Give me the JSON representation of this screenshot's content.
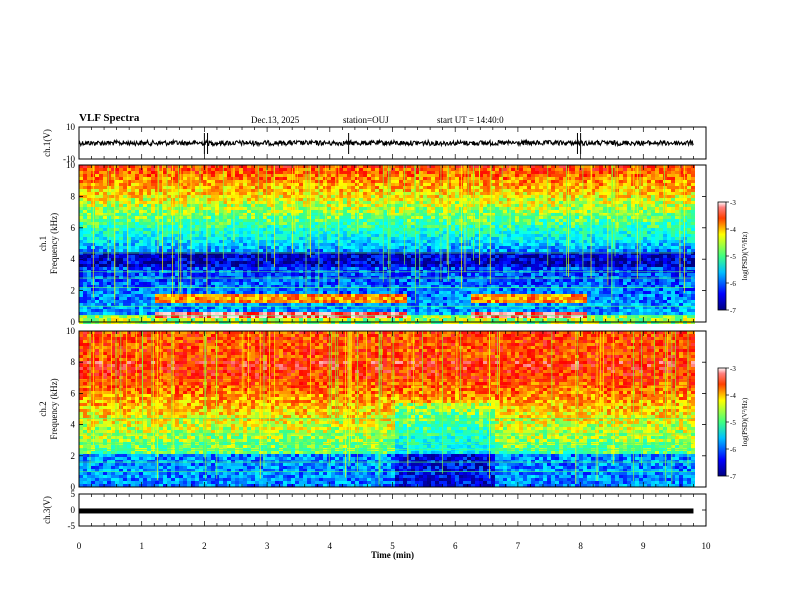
{
  "header": {
    "title": "VLF Spectra",
    "date": "Dec.13, 2025",
    "station": "station=OUJ",
    "start": "start UT =  14:40:0"
  },
  "colors": {
    "colormap": [
      "#000080",
      "#0000ff",
      "#00a0ff",
      "#00ffff",
      "#40ff80",
      "#ffff00",
      "#ff8000",
      "#ff0000",
      "#ffc0c0",
      "#ffffff"
    ],
    "trace": "#000000"
  },
  "chart_data": [
    {
      "type": "line",
      "name": "ch1-waveform",
      "ylabel": "ch.1(V)",
      "ylim": [
        -10,
        10
      ],
      "yticks": [
        "10",
        "-10"
      ],
      "xlim": [
        0,
        10
      ],
      "baseline": 0,
      "spikes_min": [
        0.0,
        2.0,
        2.05,
        4.3,
        7.95,
        8.0
      ]
    },
    {
      "type": "heatmap",
      "name": "ch1-spectrogram",
      "ylabel": "ch.1",
      "ylabel2": "Frequency (kHz)",
      "ylim": [
        0,
        10
      ],
      "yticks": [
        "0",
        "2",
        "4",
        "6",
        "8",
        "10"
      ],
      "xlim": [
        0,
        10
      ],
      "data_end_min": 9.8,
      "colorbar": {
        "label": "log(PSD)(V²/Hz)",
        "range": [
          -7,
          -3
        ],
        "ticks": [
          "-3",
          "-4",
          "-5",
          "-6",
          "-7"
        ]
      }
    },
    {
      "type": "heatmap",
      "name": "ch2-spectrogram",
      "ylabel": "ch.2",
      "ylabel2": "Frequency (kHz)",
      "ylim": [
        0,
        10
      ],
      "yticks": [
        "0",
        "2",
        "4",
        "6",
        "8",
        "10"
      ],
      "xlim": [
        0,
        10
      ],
      "data_end_min": 9.8,
      "colorbar": {
        "label": "log(PSD)(V²/Hz)",
        "range": [
          -7,
          -3
        ],
        "ticks": [
          "-3",
          "-4",
          "-5",
          "-6",
          "-7"
        ]
      }
    },
    {
      "type": "line",
      "name": "ch3-waveform",
      "ylabel": "ch.3(V)",
      "ylim": [
        -5,
        5
      ],
      "yticks": [
        "5",
        "0",
        "-5"
      ],
      "xlim": [
        0,
        10
      ],
      "baseline": -0.3
    }
  ],
  "xaxis": {
    "label": "Time (min)",
    "ticks": [
      "0",
      "1",
      "2",
      "3",
      "4",
      "5",
      "6",
      "7",
      "8",
      "9",
      "10"
    ]
  }
}
